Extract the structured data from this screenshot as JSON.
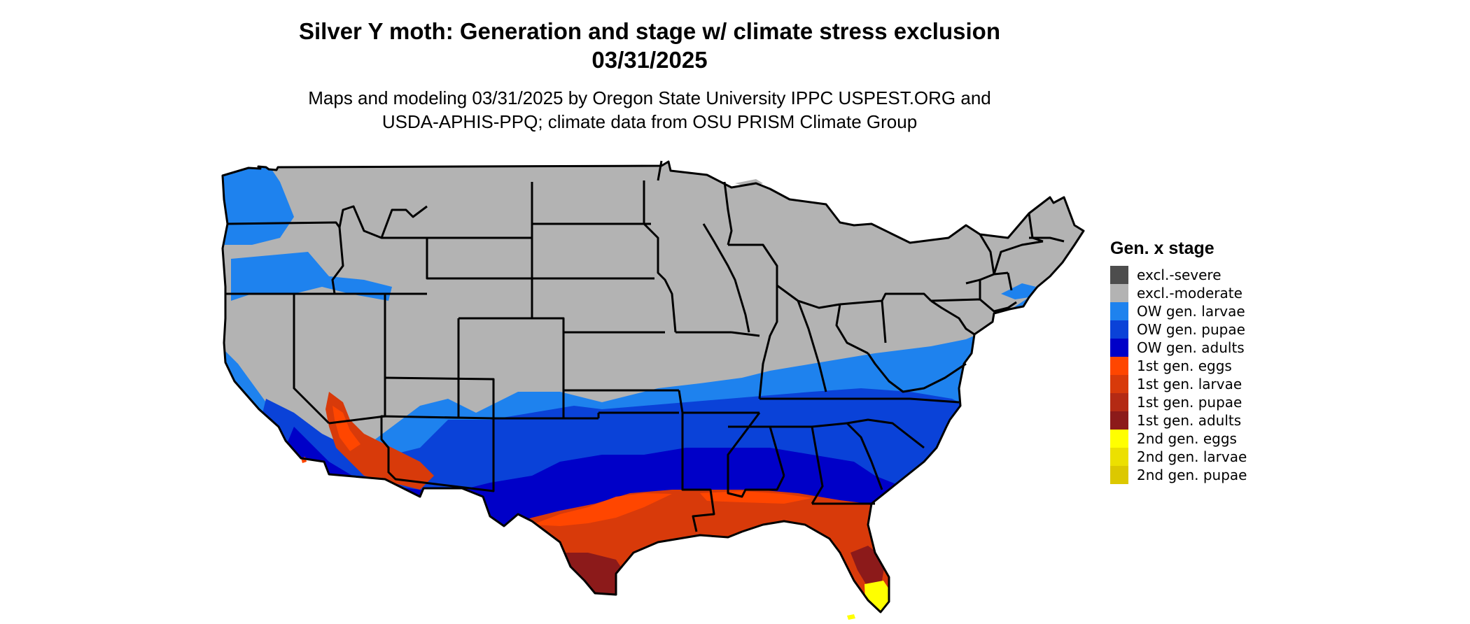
{
  "title_line1": "Silver Y moth: Generation and stage w/ climate stress exclusion",
  "title_line2": "03/31/2025",
  "subtitle_line1": "Maps and modeling 03/31/2025 by Oregon State University IPPC USPEST.ORG and",
  "subtitle_line2": "USDA-APHIS-PPQ; climate data from OSU PRISM Climate Group",
  "legend": {
    "title": "Gen. x stage",
    "items": [
      {
        "label": "excl.-severe",
        "color": "#4d4d4d"
      },
      {
        "label": "excl.-moderate",
        "color": "#b3b3b3"
      },
      {
        "label": "OW gen. larvae",
        "color": "#1e82ee"
      },
      {
        "label": "OW gen. pupae",
        "color": "#0a42d8"
      },
      {
        "label": "OW gen. adults",
        "color": "#0000c8"
      },
      {
        "label": "1st gen. eggs",
        "color": "#ff4600"
      },
      {
        "label": "1st gen. larvae",
        "color": "#d83a0a"
      },
      {
        "label": "1st gen. pupae",
        "color": "#b42a14"
      },
      {
        "label": "1st gen. adults",
        "color": "#8c1a1a"
      },
      {
        "label": "2nd gen. eggs",
        "color": "#ffff00"
      },
      {
        "label": "2nd gen. larvae",
        "color": "#ece000"
      },
      {
        "label": "2nd gen. pupae",
        "color": "#dcc800"
      }
    ]
  }
}
